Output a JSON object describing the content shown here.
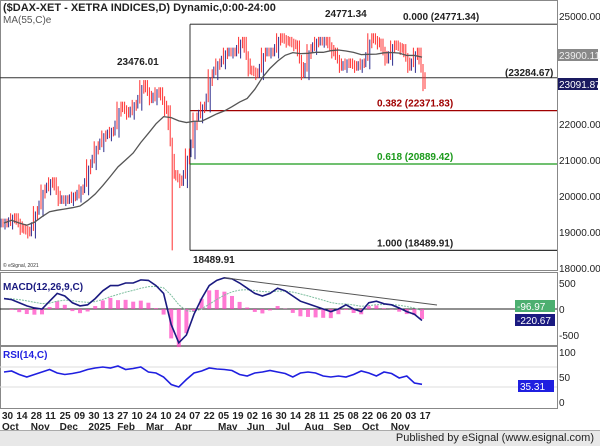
{
  "header": {
    "title": "($DAX-XET - XETRA INDICES,D) Dynamic,0:00-24:00",
    "ma_label": "MA(55,C)e",
    "copyright": "© eSignal, 2021"
  },
  "footer": {
    "publisher": "Published by eSignal (www.esignal.com)"
  },
  "colors": {
    "up_bar": "#2b2b8c",
    "down_bar": "#ff3030",
    "ma": "#555555",
    "fib_0382": "#a00000",
    "fib_0618": "#1a9a1a",
    "macd": "#1a1a80",
    "signal": "#7fbfa0",
    "histogram": "#ff40c0",
    "rsi": "#1f1fe0"
  },
  "chart_data": [
    {
      "type": "line",
      "title": "($DAX-XET - XETRA INDICES,D) Dynamic,0:00-24:00",
      "ylim": [
        18000,
        25000
      ],
      "y_ticks": [
        "25000.00",
        "22000.00",
        "21000.00",
        "20000.00",
        "19000.00",
        "18000.00"
      ],
      "x_ticks": [
        {
          "day": "30",
          "month": "Oct"
        },
        {
          "day": "14",
          "month": ""
        },
        {
          "day": "28",
          "month": "Nov"
        },
        {
          "day": "11",
          "month": ""
        },
        {
          "day": "25",
          "month": "Dec"
        },
        {
          "day": "09",
          "month": ""
        },
        {
          "day": "30",
          "month": "2025"
        },
        {
          "day": "13",
          "month": ""
        },
        {
          "day": "27",
          "month": "Feb"
        },
        {
          "day": "10",
          "month": ""
        },
        {
          "day": "24",
          "month": "Mar"
        },
        {
          "day": "10",
          "month": ""
        },
        {
          "day": "24",
          "month": "Apr"
        },
        {
          "day": "07",
          "month": ""
        },
        {
          "day": "22",
          "month": ""
        },
        {
          "day": "05",
          "month": "May"
        },
        {
          "day": "19",
          "month": ""
        },
        {
          "day": "02",
          "month": "Jun"
        },
        {
          "day": "16",
          "month": ""
        },
        {
          "day": "30",
          "month": "Jul"
        },
        {
          "day": "14",
          "month": ""
        },
        {
          "day": "28",
          "month": "Aug"
        },
        {
          "day": "11",
          "month": ""
        },
        {
          "day": "25",
          "month": "Sep"
        },
        {
          "day": "08",
          "month": ""
        },
        {
          "day": "22",
          "month": "Oct"
        },
        {
          "day": "06",
          "month": ""
        },
        {
          "day": "20",
          "month": "Nov"
        },
        {
          "day": "03",
          "month": ""
        },
        {
          "day": "17",
          "month": ""
        }
      ],
      "close": [
        19250,
        19400,
        19100,
        19000,
        19600,
        20200,
        20400,
        19900,
        19900,
        20000,
        20200,
        20900,
        21400,
        21700,
        21800,
        22500,
        22300,
        22550,
        23100,
        22700,
        22900,
        22400,
        20600,
        20400,
        21200,
        22200,
        22500,
        23400,
        23700,
        24000,
        24000,
        24300,
        23500,
        23400,
        24000,
        24000,
        24400,
        24300,
        24200,
        23400,
        24100,
        24300,
        24300,
        24000,
        23600,
        23700,
        23600,
        23700,
        24400,
        24250,
        23800,
        24200,
        24100,
        23600,
        24000,
        23091.87
      ],
      "annotations": {
        "high": "24771.34",
        "prior_high": "23476.01",
        "low": "18489.91",
        "level": "(23284.67)"
      },
      "fib_levels": [
        {
          "ratio": "0.000",
          "value": 24771.34,
          "label": "0.000 (24771.34)"
        },
        {
          "ratio": "0.382",
          "value": 22371.83,
          "label": "0.382 (22371.83)"
        },
        {
          "ratio": "0.618",
          "value": 20889.42,
          "label": "0.618 (20889.42)"
        },
        {
          "ratio": "1.000",
          "value": 18489.91,
          "label": "1.000 (18489.91)"
        }
      ],
      "horizontal_level": 23284.67,
      "last_ma": "23900.11",
      "last_price": "23091.87"
    },
    {
      "type": "line",
      "title": "MACD(12,26,9,C)",
      "ylim": [
        -750,
        650
      ],
      "y_ticks": [
        "500",
        "0",
        "-500"
      ],
      "macd": [
        200,
        180,
        120,
        60,
        20,
        0,
        150,
        300,
        250,
        120,
        60,
        80,
        200,
        350,
        450,
        450,
        500,
        500,
        560,
        550,
        450,
        300,
        -300,
        -650,
        -500,
        -100,
        200,
        450,
        550,
        600,
        580,
        500,
        400,
        300,
        250,
        300,
        400,
        350,
        250,
        150,
        100,
        50,
        0,
        -50,
        0,
        80,
        0,
        -50,
        120,
        150,
        100,
        80,
        20,
        -50,
        -100,
        -220.67
      ],
      "last_signal": "-96.97",
      "last_macd": "-220.67"
    },
    {
      "type": "line",
      "title": "RSI(14,C)",
      "ylim": [
        0,
        100
      ],
      "y_ticks": [
        "100",
        "50",
        "0"
      ],
      "rsi": [
        60,
        62,
        55,
        50,
        55,
        60,
        65,
        58,
        55,
        57,
        60,
        65,
        68,
        70,
        68,
        72,
        65,
        67,
        70,
        60,
        58,
        50,
        35,
        30,
        45,
        58,
        62,
        68,
        66,
        65,
        63,
        55,
        52,
        58,
        60,
        63,
        60,
        57,
        50,
        58,
        60,
        58,
        52,
        50,
        52,
        50,
        55,
        62,
        58,
        52,
        60,
        57,
        48,
        52,
        38,
        35.31
      ],
      "last_rsi": "35.31"
    }
  ]
}
